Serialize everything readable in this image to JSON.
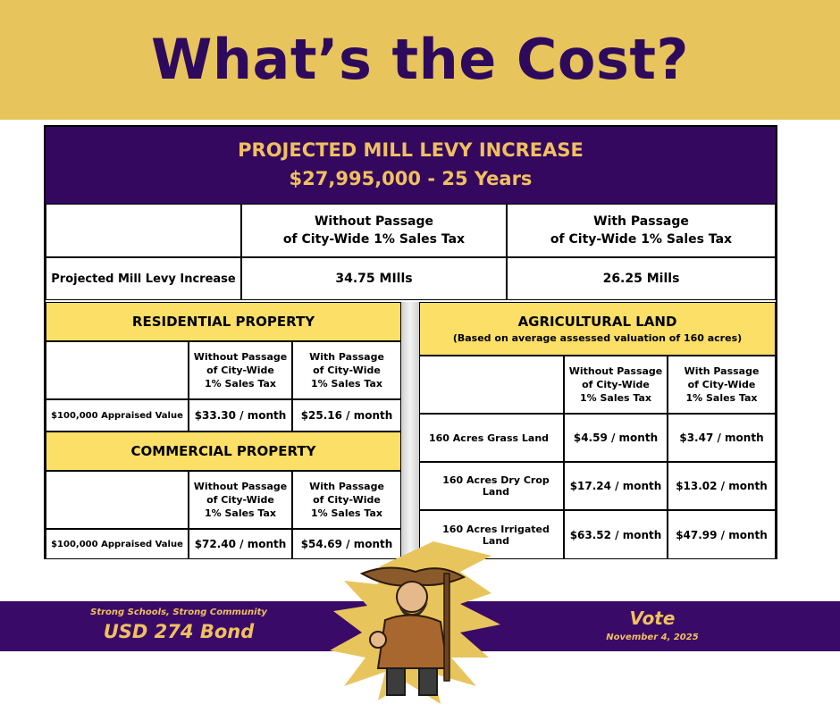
{
  "header": {
    "title": "What’s the Cost?"
  },
  "levy": {
    "title": "PROJECTED MILL LEVY INCREASE",
    "subtitle": "$27,995,000 - 25 Years",
    "col_without": [
      "Without Passage",
      "of City-Wide 1% Sales Tax"
    ],
    "col_with": [
      "With Passage",
      "of City-Wide 1% Sales Tax"
    ],
    "row_label": "Projected Mill Levy Increase",
    "without_value": "34.75 MIlls",
    "with_value": "26.25 Mills"
  },
  "residential": {
    "title": "RESIDENTIAL PROPERTY",
    "col_without": [
      "Without Passage",
      "of City-Wide",
      "1% Sales Tax"
    ],
    "col_with": [
      "With Passage",
      "of City-Wide",
      "1% Sales Tax"
    ],
    "row_label": "$100,000 Appraised Value",
    "without_value": "$33.30 / month",
    "with_value": "$25.16 / month"
  },
  "commercial": {
    "title": "COMMERCIAL PROPERTY",
    "col_without": [
      "Without Passage",
      "of City-Wide",
      "1% Sales Tax"
    ],
    "col_with": [
      "With Passage",
      "of City-Wide",
      "1% Sales Tax"
    ],
    "row_label": "$100,000 Appraised Value",
    "without_value": "$72.40 / month",
    "with_value": "$54.69 / month"
  },
  "agricultural": {
    "title": "AGRICULTURAL LAND",
    "subtitle": "(Based on average assessed valuation of 160 acres)",
    "col_without": [
      "Without Passage",
      "of City-Wide",
      "1% Sales Tax"
    ],
    "col_with": [
      "With Passage",
      "of City-Wide",
      "1% Sales Tax"
    ],
    "rows": [
      {
        "label": "160 Acres Grass Land",
        "without": "$4.59 / month",
        "with": "$3.47 / month"
      },
      {
        "label": "160 Acres Dry Crop Land",
        "without": "$17.24 / month",
        "with": "$13.02 / month"
      },
      {
        "label": "160 Acres Irrigated Land",
        "without": "$63.52 / month",
        "with": "$47.99 / month"
      }
    ]
  },
  "footer": {
    "tagline": "Strong Schools, Strong Community",
    "bond": "USD 274 Bond",
    "vote": "Vote",
    "date": "November 4, 2025"
  },
  "colors": {
    "purple": "#34085f",
    "gold": "#e8c45c",
    "yellow": "#fbdf66",
    "gold_text": "#f0c060"
  },
  "icons": {
    "mascot": "frontiersman-mascot-icon"
  }
}
